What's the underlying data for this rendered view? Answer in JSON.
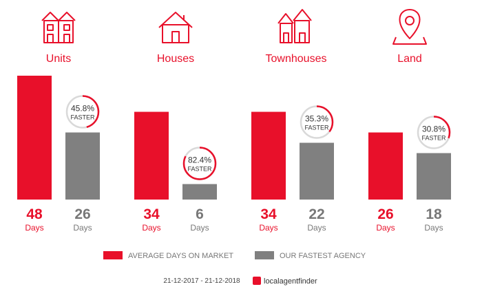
{
  "chart_data": {
    "type": "bar",
    "unit_label": "Days",
    "categories": [
      "Units",
      "Houses",
      "Townhouses",
      "Land"
    ],
    "series": [
      {
        "name": "AVERAGE DAYS ON MARKET",
        "color": "#e8102a",
        "values": [
          48,
          34,
          34,
          26
        ]
      },
      {
        "name": "OUR FASTEST AGENCY",
        "color": "#808080",
        "values": [
          26,
          6,
          22,
          18
        ]
      }
    ],
    "badges": [
      {
        "value": "45.8%",
        "label": "FASTER",
        "percent": 45.8
      },
      {
        "value": "82.4%",
        "label": "FASTER",
        "percent": 82.4
      },
      {
        "value": "35.3%",
        "label": "FASTER",
        "percent": 35.3
      },
      {
        "value": "30.8%",
        "label": "FASTER",
        "percent": 30.8
      }
    ],
    "icons": [
      "units-icon",
      "house-icon",
      "townhouses-icon",
      "land-pin-icon"
    ],
    "ylim": [
      0,
      48
    ],
    "grid": false,
    "legend_position": "bottom"
  },
  "footer": {
    "date_range": "21-12-2017 - 21-12-2018",
    "brand": "localagentfinder"
  }
}
